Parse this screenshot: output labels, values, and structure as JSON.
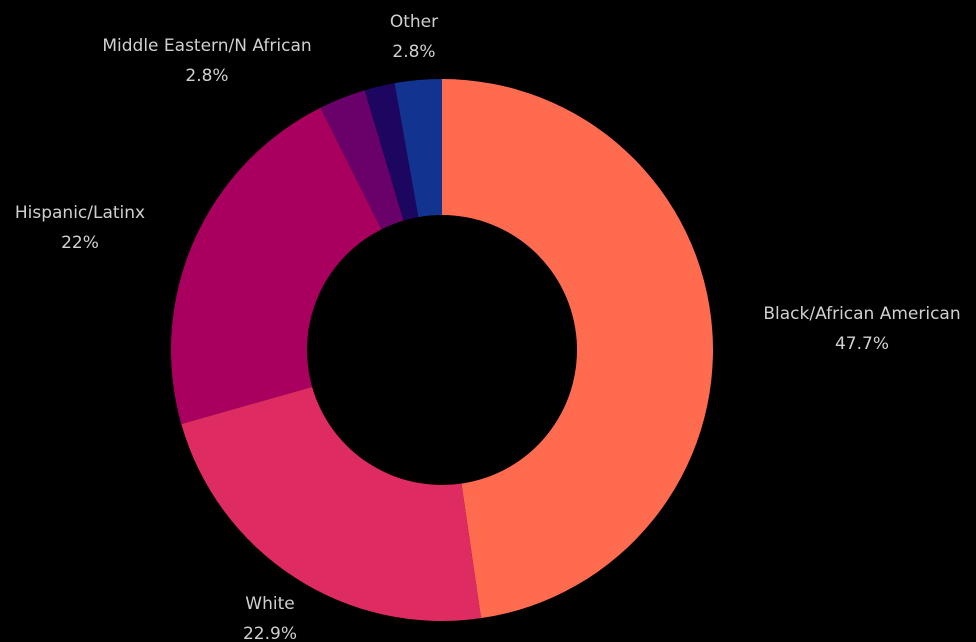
{
  "chart_data": {
    "type": "donut",
    "categories": [
      "Black/African American",
      "White",
      "Hispanic/Latinx",
      "Middle Eastern/N African",
      null,
      "Other"
    ],
    "values": [
      47.7,
      22.9,
      22,
      2.8,
      1.8,
      2.8
    ],
    "value_labels": [
      "47.7%",
      "22.9%",
      "22%",
      "2.8%",
      null,
      "2.8%"
    ],
    "colors": [
      "#ff6b4f",
      "#de2b61",
      "#a9005f",
      "#6a006a",
      "#1c0660",
      "#12338f"
    ]
  }
}
